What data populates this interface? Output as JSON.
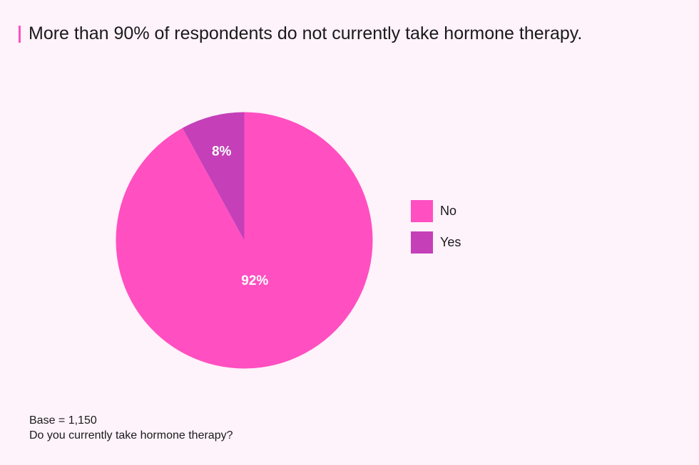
{
  "title": "More than 90% of respondents do not currently take hormone therapy.",
  "chart_data": {
    "type": "pie",
    "title": "More than 90% of respondents do not currently take hormone therapy.",
    "labels": [
      "No",
      "Yes"
    ],
    "values": [
      92,
      8
    ],
    "value_labels": [
      "92%",
      "8%"
    ],
    "colors": [
      "#ff4fc1",
      "#c43fb8"
    ],
    "legend": "right",
    "accent_color": "#ff4fc1"
  },
  "footnote": {
    "base": "Base = 1,150",
    "question": "Do you currently take hormone therapy?"
  }
}
